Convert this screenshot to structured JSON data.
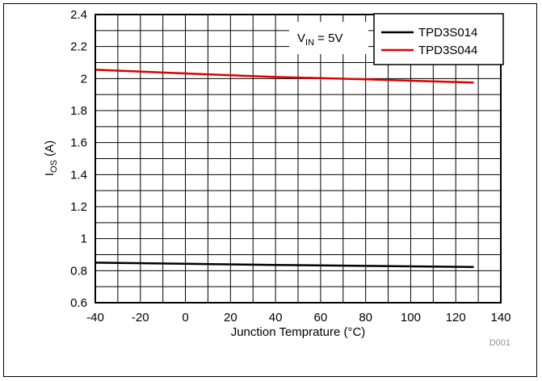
{
  "chart_data": {
    "type": "line",
    "title": "",
    "xlabel": "Junction Temprature (°C)",
    "ylabel_main": "I",
    "ylabel_sub": "OS",
    "ylabel_unit": " (A)",
    "xlim": [
      -40,
      140
    ],
    "ylim": [
      0.6,
      2.4
    ],
    "x_ticks": [
      "-40",
      "-20",
      "0",
      "20",
      "40",
      "60",
      "80",
      "100",
      "120",
      "140"
    ],
    "y_ticks": [
      "0.6",
      "0.8",
      "1",
      "1.2",
      "1.4",
      "1.6",
      "1.8",
      "2",
      "2.2",
      "2.4"
    ],
    "grid": true,
    "legend_position": "top-right",
    "annotation": {
      "main": "V",
      "sub": "IN",
      "rest": " = 5V"
    },
    "figure_id": "D001",
    "series": [
      {
        "name": "TPD3S014",
        "color": "#000000",
        "x": [
          -40,
          0,
          40,
          80,
          128
        ],
        "y": [
          0.85,
          0.843,
          0.836,
          0.83,
          0.823
        ]
      },
      {
        "name": "TPD3S044",
        "color": "#e00000",
        "x": [
          -40,
          0,
          40,
          80,
          128
        ],
        "y": [
          2.055,
          2.032,
          2.01,
          1.995,
          1.975
        ]
      }
    ]
  }
}
